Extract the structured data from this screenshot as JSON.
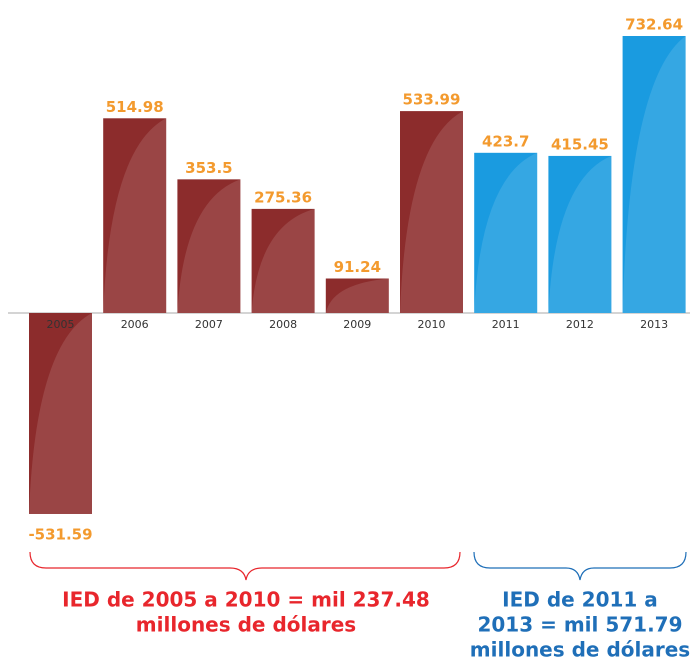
{
  "chart_data": {
    "type": "bar",
    "categories": [
      "2005",
      "2006",
      "2007",
      "2008",
      "2009",
      "2010",
      "2011",
      "2012",
      "2013"
    ],
    "values": [
      -531.59,
      514.98,
      353.5,
      275.36,
      91.24,
      533.99,
      423.7,
      415.45,
      732.64
    ],
    "colors": [
      "#8c2c2c",
      "#8c2c2c",
      "#8c2c2c",
      "#8c2c2c",
      "#8c2c2c",
      "#8c2c2c",
      "#1a9be0",
      "#1a9be0",
      "#1a9be0"
    ],
    "annotations": [
      {
        "lines": [
          "IED de 2005 a 2010 = mil 237.48",
          "millones de  dólares"
        ],
        "color": "#e8262c"
      },
      {
        "lines": [
          "IED de 2011 a",
          "2013 = mil 571.79",
          "millones de dólares"
        ],
        "color": "#1f6fb8"
      }
    ]
  }
}
